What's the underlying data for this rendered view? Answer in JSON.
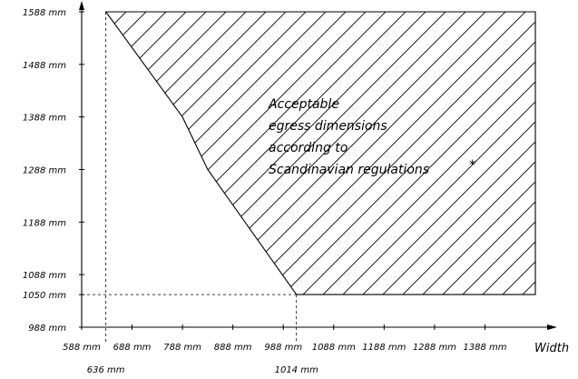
{
  "chart_data": {
    "type": "area",
    "title": "",
    "xlabel": "Width",
    "ylabel": "",
    "unit": "mm",
    "xlim": [
      588,
      1488
    ],
    "ylim": [
      988,
      1588
    ],
    "x_ticks": [
      {
        "value": 588,
        "label": "588 mm"
      },
      {
        "value": 688,
        "label": "688 mm"
      },
      {
        "value": 788,
        "label": "788 mm"
      },
      {
        "value": 888,
        "label": "888 mm"
      },
      {
        "value": 988,
        "label": "988 mm"
      },
      {
        "value": 1088,
        "label": "1088 mm"
      },
      {
        "value": 1188,
        "label": "1188 mm"
      },
      {
        "value": 1288,
        "label": "1288 mm"
      },
      {
        "value": 1388,
        "label": "1388 mm"
      }
    ],
    "x_marks": [
      {
        "value": 636,
        "label": "636 mm"
      },
      {
        "value": 1014,
        "label": "1014 mm"
      }
    ],
    "y_ticks": [
      {
        "value": 1588,
        "label": "1588 mm"
      },
      {
        "value": 1488,
        "label": "1488 mm"
      },
      {
        "value": 1388,
        "label": "1388 mm"
      },
      {
        "value": 1288,
        "label": "1288 mm"
      },
      {
        "value": 1188,
        "label": "1188 mm"
      },
      {
        "value": 1088,
        "label": "1088 mm"
      },
      {
        "value": 1050,
        "label": "1050 mm"
      },
      {
        "value": 988,
        "label": "988 mm"
      }
    ],
    "boundary": [
      {
        "x": 636,
        "y": 1588
      },
      {
        "x": 788,
        "y": 1388
      },
      {
        "x": 838,
        "y": 1288
      },
      {
        "x": 1014,
        "y": 1050
      }
    ],
    "region": {
      "x_max": 1488,
      "y_top": 1588,
      "y_bottom": 1050,
      "fill": "diagonal-hatch",
      "label_lines": [
        "Acceptable",
        "egress dimensions",
        "according to",
        "Scandinavian regulations"
      ],
      "marker": "*"
    },
    "reference_lines": [
      {
        "axis": "x",
        "value": 636,
        "style": "dashed"
      },
      {
        "axis": "x",
        "value": 1014,
        "style": "dashed"
      },
      {
        "axis": "y",
        "value": 1050,
        "style": "dashed"
      }
    ],
    "grid": false,
    "legend": "none",
    "colors": {
      "ink": "#000000",
      "background": "#ffffff"
    }
  }
}
